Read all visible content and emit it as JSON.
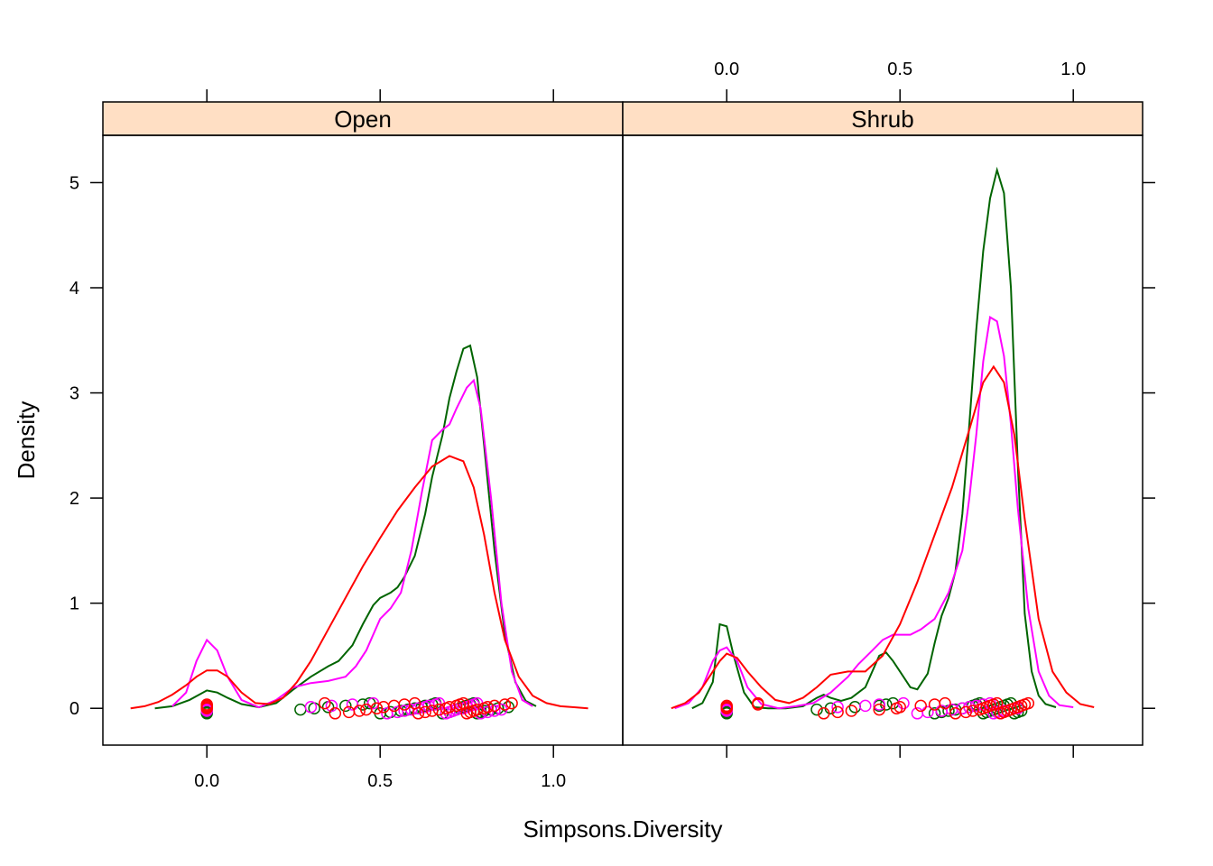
{
  "chart_data": {
    "type": "line",
    "xlabel": "Simpsons.Diversity",
    "ylabel": "Density",
    "xlim": [
      -0.3,
      1.2
    ],
    "ylim": [
      -0.35,
      5.45
    ],
    "x_ticks": [
      0.0,
      0.5,
      1.0
    ],
    "x_tick_labels": [
      "0.0",
      "0.5",
      "1.0"
    ],
    "y_ticks": [
      0,
      1,
      2,
      3,
      4,
      5
    ],
    "y_tick_labels": [
      "0",
      "1",
      "2",
      "3",
      "4",
      "5"
    ],
    "strip_color": "#ffdfc4",
    "grid": false,
    "series_colors": [
      "#006400",
      "#ff00ff",
      "#ff0000"
    ],
    "panels": [
      {
        "name": "Open",
        "series": [
          {
            "color": "#006400",
            "x": [
              -0.15,
              -0.1,
              -0.05,
              0.0,
              0.03,
              0.06,
              0.1,
              0.15,
              0.2,
              0.25,
              0.3,
              0.35,
              0.38,
              0.42,
              0.45,
              0.48,
              0.5,
              0.53,
              0.55,
              0.57,
              0.6,
              0.63,
              0.65,
              0.68,
              0.7,
              0.72,
              0.74,
              0.76,
              0.78,
              0.8,
              0.83,
              0.86,
              0.89,
              0.92,
              0.95
            ],
            "y": [
              0.0,
              0.02,
              0.08,
              0.17,
              0.15,
              0.1,
              0.04,
              0.01,
              0.05,
              0.18,
              0.3,
              0.4,
              0.45,
              0.6,
              0.8,
              0.98,
              1.05,
              1.1,
              1.15,
              1.25,
              1.45,
              1.85,
              2.2,
              2.6,
              2.95,
              3.2,
              3.42,
              3.45,
              3.15,
              2.5,
              1.5,
              0.7,
              0.25,
              0.07,
              0.02
            ]
          },
          {
            "color": "#ff00ff",
            "x": [
              -0.1,
              -0.06,
              -0.03,
              0.0,
              0.03,
              0.06,
              0.1,
              0.15,
              0.2,
              0.25,
              0.3,
              0.35,
              0.4,
              0.43,
              0.46,
              0.5,
              0.53,
              0.56,
              0.59,
              0.62,
              0.65,
              0.68,
              0.7,
              0.72,
              0.75,
              0.77,
              0.79,
              0.82,
              0.85,
              0.88,
              0.91,
              0.94
            ],
            "y": [
              0.02,
              0.15,
              0.45,
              0.65,
              0.55,
              0.3,
              0.08,
              0.01,
              0.08,
              0.2,
              0.24,
              0.26,
              0.3,
              0.4,
              0.55,
              0.85,
              0.95,
              1.1,
              1.5,
              2.05,
              2.55,
              2.65,
              2.7,
              2.85,
              3.05,
              3.12,
              2.85,
              2.0,
              1.0,
              0.35,
              0.08,
              0.02
            ]
          },
          {
            "color": "#ff0000",
            "x": [
              -0.22,
              -0.18,
              -0.14,
              -0.1,
              -0.06,
              -0.03,
              0.0,
              0.03,
              0.06,
              0.1,
              0.14,
              0.18,
              0.22,
              0.26,
              0.3,
              0.35,
              0.4,
              0.45,
              0.5,
              0.55,
              0.6,
              0.65,
              0.7,
              0.74,
              0.77,
              0.8,
              0.83,
              0.86,
              0.9,
              0.94,
              0.98,
              1.02,
              1.06,
              1.1
            ],
            "y": [
              0.0,
              0.02,
              0.06,
              0.13,
              0.22,
              0.3,
              0.36,
              0.36,
              0.3,
              0.15,
              0.05,
              0.04,
              0.1,
              0.25,
              0.45,
              0.75,
              1.05,
              1.35,
              1.62,
              1.88,
              2.1,
              2.3,
              2.4,
              2.35,
              2.1,
              1.65,
              1.1,
              0.65,
              0.3,
              0.12,
              0.05,
              0.02,
              0.01,
              0.0
            ]
          }
        ],
        "rug": [
          {
            "color": "#006400",
            "x": [
              0.0,
              0.0,
              0.0,
              0.27,
              0.31,
              0.35,
              0.4,
              0.45,
              0.47,
              0.5,
              0.53,
              0.56,
              0.58,
              0.6,
              0.62,
              0.63,
              0.65,
              0.66,
              0.68,
              0.7,
              0.71,
              0.72,
              0.73,
              0.74,
              0.75,
              0.76,
              0.77,
              0.78,
              0.79,
              0.8,
              0.82,
              0.84,
              0.87
            ]
          },
          {
            "color": "#ff00ff",
            "x": [
              0.0,
              0.0,
              0.0,
              0.3,
              0.36,
              0.42,
              0.48,
              0.52,
              0.55,
              0.57,
              0.59,
              0.61,
              0.63,
              0.64,
              0.66,
              0.67,
              0.69,
              0.7,
              0.71,
              0.72,
              0.74,
              0.75,
              0.76,
              0.77,
              0.78,
              0.79,
              0.81,
              0.83,
              0.85
            ]
          },
          {
            "color": "#ff0000",
            "x": [
              0.0,
              0.0,
              0.0,
              0.0,
              0.34,
              0.37,
              0.41,
              0.44,
              0.46,
              0.49,
              0.51,
              0.54,
              0.57,
              0.6,
              0.61,
              0.63,
              0.65,
              0.67,
              0.69,
              0.7,
              0.72,
              0.73,
              0.74,
              0.75,
              0.76,
              0.77,
              0.78,
              0.8,
              0.81,
              0.83,
              0.86,
              0.88
            ]
          }
        ]
      },
      {
        "name": "Shrub",
        "series": [
          {
            "color": "#006400",
            "x": [
              -0.1,
              -0.07,
              -0.04,
              -0.02,
              0.0,
              0.02,
              0.05,
              0.08,
              0.12,
              0.17,
              0.22,
              0.26,
              0.28,
              0.3,
              0.33,
              0.36,
              0.38,
              0.4,
              0.44,
              0.46,
              0.48,
              0.5,
              0.53,
              0.55,
              0.58,
              0.6,
              0.62,
              0.64,
              0.66,
              0.68,
              0.7,
              0.72,
              0.74,
              0.76,
              0.78,
              0.8,
              0.82,
              0.84,
              0.86,
              0.88,
              0.9,
              0.92,
              0.95
            ],
            "y": [
              0.0,
              0.05,
              0.25,
              0.8,
              0.78,
              0.5,
              0.15,
              0.01,
              0.0,
              0.0,
              0.02,
              0.1,
              0.13,
              0.1,
              0.07,
              0.1,
              0.15,
              0.2,
              0.5,
              0.53,
              0.45,
              0.35,
              0.2,
              0.18,
              0.33,
              0.62,
              0.88,
              1.05,
              1.3,
              1.85,
              2.7,
              3.6,
              4.35,
              4.85,
              5.12,
              4.9,
              4.0,
              2.3,
              0.9,
              0.35,
              0.12,
              0.04,
              0.01
            ]
          },
          {
            "color": "#ff00ff",
            "x": [
              -0.15,
              -0.11,
              -0.07,
              -0.04,
              -0.02,
              0.0,
              0.03,
              0.06,
              0.1,
              0.15,
              0.2,
              0.25,
              0.3,
              0.35,
              0.38,
              0.42,
              0.45,
              0.48,
              0.5,
              0.53,
              0.56,
              0.6,
              0.64,
              0.68,
              0.7,
              0.72,
              0.74,
              0.76,
              0.78,
              0.8,
              0.82,
              0.84,
              0.87,
              0.9,
              0.93,
              0.96,
              1.0
            ],
            "y": [
              0.0,
              0.05,
              0.2,
              0.45,
              0.55,
              0.58,
              0.45,
              0.2,
              0.04,
              0.0,
              0.02,
              0.05,
              0.15,
              0.3,
              0.42,
              0.55,
              0.65,
              0.7,
              0.7,
              0.7,
              0.75,
              0.85,
              1.1,
              1.5,
              2.0,
              2.6,
              3.3,
              3.72,
              3.68,
              3.35,
              2.7,
              1.9,
              0.95,
              0.35,
              0.12,
              0.03,
              0.01
            ]
          },
          {
            "color": "#ff0000",
            "x": [
              -0.16,
              -0.12,
              -0.08,
              -0.05,
              -0.02,
              0.0,
              0.03,
              0.06,
              0.1,
              0.14,
              0.18,
              0.22,
              0.26,
              0.3,
              0.35,
              0.4,
              0.45,
              0.5,
              0.55,
              0.6,
              0.65,
              0.7,
              0.74,
              0.77,
              0.8,
              0.83,
              0.86,
              0.9,
              0.94,
              0.98,
              1.02,
              1.06
            ],
            "y": [
              0.0,
              0.05,
              0.15,
              0.3,
              0.45,
              0.52,
              0.48,
              0.35,
              0.2,
              0.08,
              0.05,
              0.1,
              0.2,
              0.32,
              0.35,
              0.35,
              0.5,
              0.8,
              1.2,
              1.65,
              2.1,
              2.65,
              3.1,
              3.25,
              3.1,
              2.6,
              1.8,
              0.85,
              0.35,
              0.15,
              0.04,
              0.01
            ]
          }
        ],
        "rug": [
          {
            "color": "#006400",
            "x": [
              0.0,
              0.0,
              0.0,
              0.26,
              0.3,
              0.37,
              0.44,
              0.46,
              0.48,
              0.6,
              0.62,
              0.64,
              0.66,
              0.68,
              0.7,
              0.71,
              0.72,
              0.73,
              0.74,
              0.75,
              0.76,
              0.77,
              0.78,
              0.79,
              0.8,
              0.81,
              0.82,
              0.83,
              0.84,
              0.85
            ]
          },
          {
            "color": "#ff00ff",
            "x": [
              0.0,
              0.0,
              0.0,
              0.32,
              0.4,
              0.44,
              0.51,
              0.55,
              0.58,
              0.62,
              0.65,
              0.68,
              0.7,
              0.72,
              0.74,
              0.76,
              0.77,
              0.78,
              0.8,
              0.82,
              0.84
            ]
          },
          {
            "color": "#ff0000",
            "x": [
              0.0,
              0.0,
              0.0,
              0.09,
              0.09,
              0.28,
              0.32,
              0.36,
              0.44,
              0.49,
              0.5,
              0.56,
              0.6,
              0.63,
              0.66,
              0.69,
              0.71,
              0.73,
              0.74,
              0.75,
              0.76,
              0.77,
              0.78,
              0.79,
              0.8,
              0.81,
              0.82,
              0.83,
              0.84,
              0.85,
              0.86,
              0.87
            ]
          }
        ]
      }
    ]
  }
}
